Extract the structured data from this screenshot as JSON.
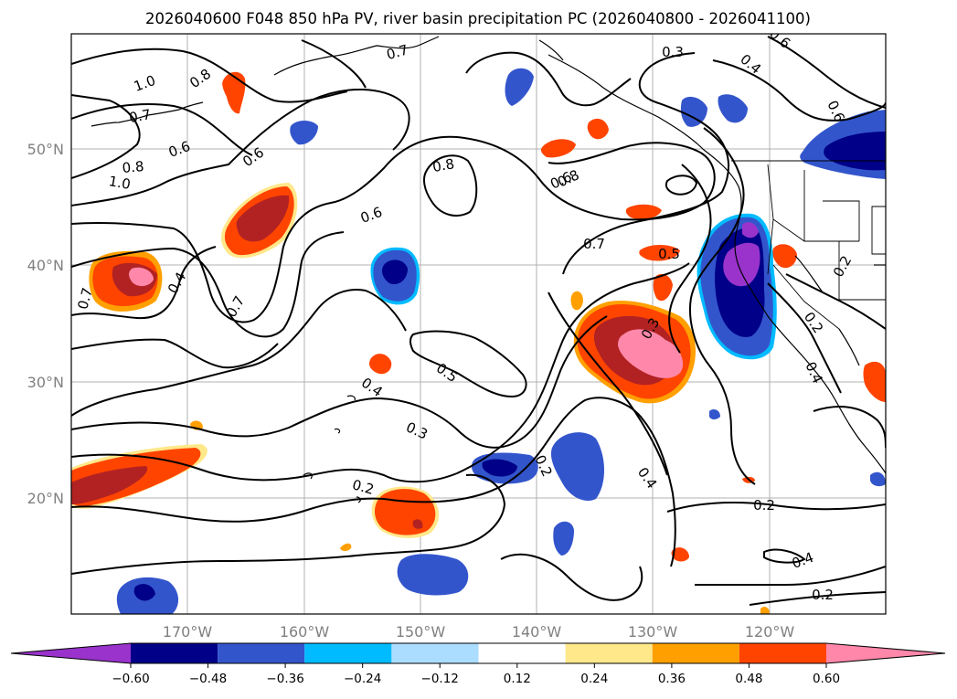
{
  "title": "2026040600 F048 850 hPa PV, river basin precipitation PC (2026040800 - 2026041100)",
  "lat_labels": [
    "50°N",
    "40°N",
    "30°N",
    "20°N"
  ],
  "lon_labels": [
    "170°W",
    "160°W",
    "150°W",
    "140°W",
    "130°W",
    "120°W"
  ],
  "contour_labels": [
    "1.0",
    "0.7",
    "0.8",
    "0.7",
    "0.6",
    "0.6",
    "0.8",
    "1.0",
    "0.6",
    "0.7",
    "0.4",
    "0.7",
    "0.8",
    "0.6",
    "0.7",
    "0.8",
    "0.5",
    "0.3",
    "0.5",
    "0.4",
    "0.3",
    "0.2",
    "0.2",
    "0.4",
    "0.3",
    "0.4",
    "0.6",
    "0.6",
    "0.2",
    "0.2",
    "0.4",
    "0.2",
    "0.4",
    "0.2"
  ],
  "colorbar": {
    "ticks": [
      "−0.60",
      "−0.48",
      "−0.36",
      "−0.24",
      "−0.12",
      "0.12",
      "0.24",
      "0.36",
      "0.48",
      "0.60"
    ],
    "colors": [
      "#9933cc",
      "#000088",
      "#3355cc",
      "#00bbff",
      "#aaddff",
      "#ffffff",
      "#ffe88a",
      "#ffa000",
      "#ff4400",
      "#b22222",
      "#ff88aa"
    ]
  }
}
